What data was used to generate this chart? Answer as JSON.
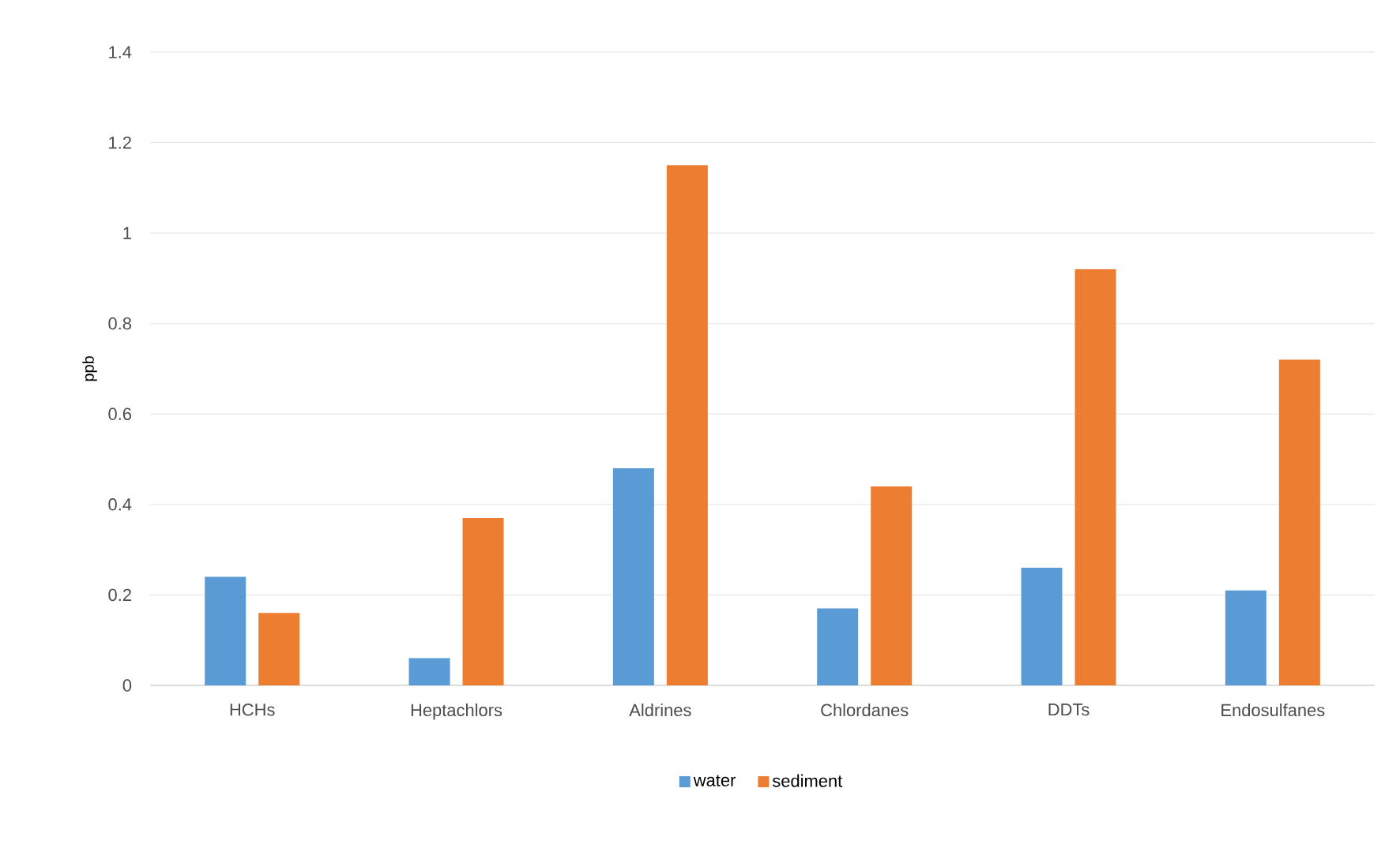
{
  "chart_data": {
    "type": "bar",
    "categories": [
      "HCHs",
      "Heptachlors",
      "Aldrines",
      "Chlordanes",
      "DDTs",
      "Endosulfanes"
    ],
    "series": [
      {
        "name": "water",
        "color": "#5b9bd5",
        "values": [
          0.24,
          0.06,
          0.48,
          0.17,
          0.26,
          0.21
        ]
      },
      {
        "name": "sediment",
        "color": "#ed7d31",
        "values": [
          0.16,
          0.37,
          1.15,
          0.44,
          0.92,
          0.72
        ]
      }
    ],
    "ylabel": "ppb",
    "ylim": [
      0,
      1.4
    ],
    "yticks": [
      0,
      0.2,
      0.4,
      0.6,
      0.8,
      1,
      1.2,
      1.4
    ],
    "grid": "y",
    "legend": "bottom"
  }
}
